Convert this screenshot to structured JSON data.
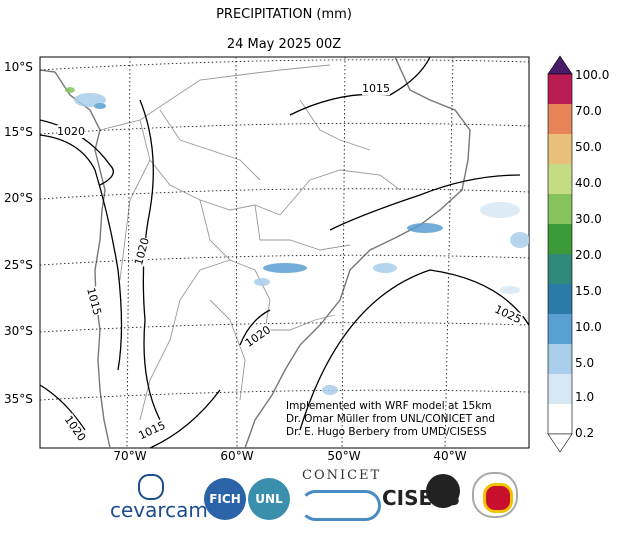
{
  "title": "PRECIPITATION (mm)",
  "subtitle": "24 May 2025 00Z",
  "lat_labels": [
    "10°S",
    "15°S",
    "20°S",
    "25°S",
    "30°S",
    "35°S"
  ],
  "lon_labels": [
    "70°W",
    "60°W",
    "50°W",
    "40°W"
  ],
  "isobar_labels": [
    "1015",
    "1020",
    "1020",
    "1015",
    "1020",
    "1025",
    "1020",
    "1015"
  ],
  "colorbar": {
    "labels": [
      "100.0",
      "70.0",
      "50.0",
      "40.0",
      "30.0",
      "20.0",
      "15.0",
      "10.0",
      "5.0",
      "1.0",
      "0.2"
    ],
    "colors": [
      "#8b1a5e",
      "#b81c52",
      "#e8845a",
      "#e8c07a",
      "#c5dc86",
      "#86c25f",
      "#3b9a37",
      "#2f8a7a",
      "#2a7ba8",
      "#5a9fd1",
      "#a9cdea",
      "#d7e8f5",
      "#ffffff"
    ],
    "top_triangle": "#4b1a6b"
  },
  "credit": {
    "line1": "Implemented with WRF model at 15km",
    "line2": "Dr. Omar Müller from UNL/CONICET and",
    "line3": "Dr. E. Hugo Berbery from UMD/CISESS"
  },
  "logos": {
    "cevarcam": "cevarcam",
    "fich": "FICH",
    "unl": "UNL",
    "conicet": "CONICET",
    "cisess": "CISESS"
  }
}
